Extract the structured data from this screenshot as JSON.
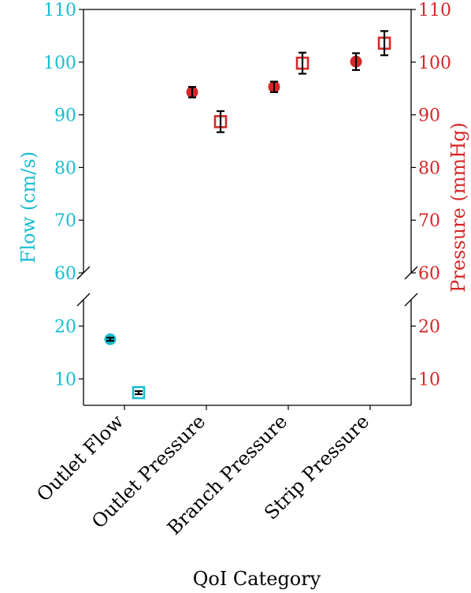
{
  "chart_data": {
    "type": "scatter",
    "xlabel": "QoI Category",
    "ylabel_left": "Flow (cm/s)",
    "ylabel_right": "Pressure (mmHg)",
    "categories": [
      "Outlet Flow",
      "Outlet Pressure",
      "Branch Pressure",
      "Strip Pressure"
    ],
    "axis_breaks": {
      "upper_ylim": [
        60,
        110
      ],
      "lower_ylim": [
        5,
        25
      ]
    },
    "upper_yticks": [
      60,
      70,
      80,
      90,
      100,
      110
    ],
    "lower_yticks": [
      10,
      20
    ],
    "upper_ytick_labels_left": [
      "60",
      "70",
      "80",
      "90",
      "100",
      "110"
    ],
    "upper_ytick_labels_right": [
      "60",
      "70",
      "80",
      "90",
      "100",
      "110"
    ],
    "lower_ytick_labels_left": [
      "10",
      "20"
    ],
    "lower_ytick_labels_right": [
      "10",
      "20"
    ],
    "colors": {
      "flow": "#17becf",
      "pressure": "#d62728",
      "errorbar": "#000000"
    },
    "series": [
      {
        "marker": "circle",
        "points": [
          {
            "category": "Outlet Flow",
            "y": 17.5,
            "err": 0.3,
            "color": "flow"
          },
          {
            "category": "Outlet Pressure",
            "y": 94.3,
            "err": 1.0,
            "color": "pressure"
          },
          {
            "category": "Branch Pressure",
            "y": 95.3,
            "err": 1.0,
            "color": "pressure"
          },
          {
            "category": "Strip Pressure",
            "y": 100.1,
            "err": 1.6,
            "color": "pressure"
          }
        ]
      },
      {
        "marker": "open-square",
        "points": [
          {
            "category": "Outlet Flow",
            "y": 7.4,
            "err": 0.3,
            "color": "flow"
          },
          {
            "category": "Outlet Pressure",
            "y": 88.7,
            "err": 2.0,
            "color": "pressure"
          },
          {
            "category": "Branch Pressure",
            "y": 99.8,
            "err": 2.0,
            "color": "pressure"
          },
          {
            "category": "Strip Pressure",
            "y": 103.6,
            "err": 2.3,
            "color": "pressure"
          }
        ]
      }
    ]
  }
}
